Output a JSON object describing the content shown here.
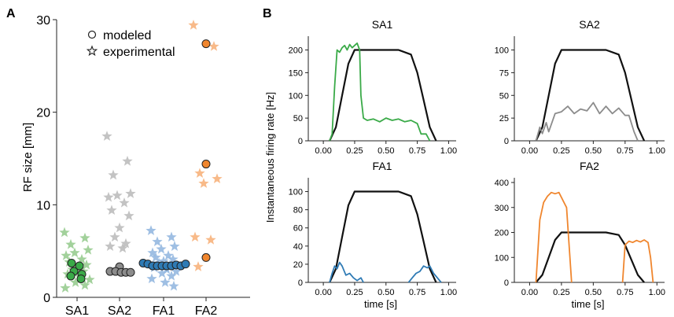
{
  "panel_labels": {
    "a": "A",
    "b": "B"
  },
  "colors": {
    "SA1": "#3aaa48",
    "SA2": "#8c8c8c",
    "FA1": "#2f7bb5",
    "FA2": "#f0862e",
    "SA1_light": "#98cc90",
    "SA2_light": "#bdbdbd",
    "FA1_light": "#95b8e0",
    "FA2_light": "#f7b27c",
    "stimulus": "#111111"
  },
  "chart_data": [
    {
      "type": "scatter",
      "panel": "A",
      "title": "",
      "xlabel": "",
      "ylabel": "RF size [mm]",
      "categories": [
        "SA1",
        "SA2",
        "FA1",
        "FA2"
      ],
      "ylim": [
        0,
        30
      ],
      "yticks": [
        0,
        10,
        20,
        30
      ],
      "legend": {
        "position": "top-center",
        "entries": [
          {
            "marker": "circle",
            "label": "modeled"
          },
          {
            "marker": "star",
            "label": "experimental"
          }
        ]
      },
      "series": [
        {
          "name": "experimental",
          "marker": "star",
          "points": {
            "SA1": [
              7.0,
              6.4,
              5.7,
              5.1,
              4.8,
              4.5,
              4.1,
              3.8,
              3.5,
              3.2,
              3.0,
              2.8,
              2.5,
              2.2,
              1.9,
              1.6,
              1.3,
              1.0
            ],
            "SA2": [
              17.4,
              14.7,
              13.2,
              11.2,
              11.0,
              10.8,
              10.2,
              9.4,
              8.8,
              7.5,
              6.5,
              5.8,
              5.5,
              5.3
            ],
            "FA1": [
              7.2,
              6.5,
              6.0,
              5.5,
              5.2,
              4.8,
              4.5,
              4.3,
              4.1,
              3.9,
              3.7,
              3.5,
              3.2,
              3.0,
              2.8,
              2.6,
              2.3,
              2.0,
              1.6,
              1.2
            ],
            "FA2": [
              29.4,
              27.1,
              13.4,
              12.8,
              12.3,
              6.5,
              6.2,
              3.3
            ]
          }
        },
        {
          "name": "modeled",
          "marker": "circle",
          "points": {
            "SA1": [
              3.7,
              3.4,
              2.8,
              2.5,
              2.3,
              2.0
            ],
            "SA2": [
              3.3,
              2.8,
              2.8,
              2.7,
              2.7,
              2.7
            ],
            "FA1": [
              3.7,
              3.6,
              3.4,
              3.4,
              3.4,
              3.4,
              3.4,
              3.5,
              3.4,
              3.6
            ],
            "FA2": [
              27.4,
              14.4,
              4.3
            ]
          }
        }
      ]
    },
    {
      "type": "line",
      "panel": "B",
      "title": "SA1",
      "xlabel": "",
      "ylabel": "",
      "xlim": [
        0,
        1
      ],
      "ylim": [
        0,
        220
      ],
      "xticks": [
        "0.00",
        "0.25",
        "0.50",
        "0.75",
        "1.00"
      ],
      "yticks": [
        "0",
        "50",
        "100",
        "150",
        "200"
      ],
      "series": [
        {
          "role": "stimulus",
          "color": "#111111",
          "x": [
            0.05,
            0.1,
            0.15,
            0.2,
            0.25,
            0.3,
            0.6,
            0.7,
            0.75,
            0.8,
            0.85,
            0.9
          ],
          "y": [
            0,
            30,
            100,
            170,
            200,
            200,
            200,
            190,
            150,
            90,
            30,
            0
          ]
        },
        {
          "role": "response",
          "color": "#3aaa48",
          "x": [
            0.05,
            0.07,
            0.09,
            0.11,
            0.13,
            0.15,
            0.17,
            0.19,
            0.21,
            0.23,
            0.25,
            0.27,
            0.29,
            0.3,
            0.32,
            0.35,
            0.4,
            0.45,
            0.5,
            0.55,
            0.6,
            0.65,
            0.7,
            0.75,
            0.78,
            0.82,
            0.85
          ],
          "y": [
            0,
            15,
            120,
            200,
            195,
            205,
            210,
            200,
            212,
            205,
            210,
            215,
            200,
            100,
            50,
            45,
            48,
            42,
            50,
            45,
            48,
            42,
            45,
            38,
            15,
            15,
            0
          ]
        }
      ]
    },
    {
      "type": "line",
      "panel": "B",
      "title": "SA2",
      "xlabel": "",
      "ylabel": "",
      "xlim": [
        0,
        1
      ],
      "ylim": [
        0,
        110
      ],
      "xticks": [
        "0.00",
        "0.25",
        "0.50",
        "0.75",
        "1.00"
      ],
      "yticks": [
        "0",
        "25",
        "50",
        "75",
        "100"
      ],
      "series": [
        {
          "role": "stimulus",
          "color": "#111111",
          "x": [
            0.05,
            0.1,
            0.15,
            0.2,
            0.25,
            0.3,
            0.6,
            0.7,
            0.75,
            0.8,
            0.85,
            0.9
          ],
          "y": [
            0,
            15,
            50,
            85,
            100,
            100,
            100,
            95,
            75,
            45,
            15,
            0
          ]
        },
        {
          "role": "response",
          "color": "#8c8c8c",
          "x": [
            0.05,
            0.08,
            0.1,
            0.13,
            0.15,
            0.18,
            0.2,
            0.25,
            0.3,
            0.35,
            0.4,
            0.45,
            0.5,
            0.55,
            0.6,
            0.65,
            0.7,
            0.75,
            0.78,
            0.82,
            0.85
          ],
          "y": [
            0,
            15,
            8,
            20,
            10,
            22,
            30,
            32,
            38,
            30,
            35,
            33,
            42,
            30,
            38,
            30,
            36,
            28,
            28,
            10,
            0
          ]
        }
      ]
    },
    {
      "type": "line",
      "panel": "B",
      "title": "FA1",
      "xlabel": "time [s]",
      "ylabel": "",
      "xlim": [
        0,
        1
      ],
      "ylim": [
        0,
        110
      ],
      "xticks": [
        "0.00",
        "0.25",
        "0.50",
        "0.75",
        "1.00"
      ],
      "yticks": [
        "0",
        "20",
        "40",
        "60",
        "80",
        "100"
      ],
      "series": [
        {
          "role": "stimulus",
          "color": "#111111",
          "x": [
            0.05,
            0.1,
            0.15,
            0.2,
            0.25,
            0.3,
            0.6,
            0.7,
            0.75,
            0.8,
            0.85,
            0.9
          ],
          "y": [
            0,
            15,
            50,
            85,
            100,
            100,
            100,
            95,
            75,
            45,
            15,
            0
          ]
        },
        {
          "role": "response",
          "color": "#2f7bb5",
          "x": [
            0.05,
            0.07,
            0.09,
            0.11,
            0.13,
            0.15,
            0.18,
            0.21,
            0.24,
            0.27,
            0.3,
            0.32
          ],
          "y": [
            0,
            10,
            18,
            15,
            22,
            18,
            8,
            10,
            5,
            2,
            5,
            0
          ]
        },
        {
          "role": "response",
          "color": "#2f7bb5",
          "x": [
            0.68,
            0.71,
            0.74,
            0.77,
            0.8,
            0.83,
            0.85,
            0.88,
            0.91,
            0.94
          ],
          "y": [
            0,
            5,
            10,
            12,
            18,
            16,
            18,
            10,
            5,
            0
          ]
        }
      ]
    },
    {
      "type": "line",
      "panel": "B",
      "title": "FA2",
      "xlabel": "time [s]",
      "ylabel": "",
      "xlim": [
        0,
        1
      ],
      "ylim": [
        0,
        400
      ],
      "xticks": [
        "0.00",
        "0.25",
        "0.50",
        "0.75",
        "1.00"
      ],
      "yticks": [
        "0",
        "100",
        "200",
        "300",
        "400"
      ],
      "series": [
        {
          "role": "stimulus",
          "color": "#111111",
          "x": [
            0.05,
            0.1,
            0.15,
            0.2,
            0.25,
            0.3,
            0.6,
            0.7,
            0.75,
            0.8,
            0.85,
            0.9
          ],
          "y": [
            0,
            30,
            100,
            170,
            200,
            200,
            200,
            190,
            150,
            90,
            30,
            0
          ]
        },
        {
          "role": "response",
          "color": "#f0862e",
          "x": [
            0.05,
            0.08,
            0.11,
            0.14,
            0.17,
            0.2,
            0.23,
            0.26,
            0.29,
            0.31,
            0.33
          ],
          "y": [
            0,
            250,
            320,
            345,
            360,
            355,
            360,
            330,
            300,
            150,
            0
          ]
        },
        {
          "role": "response",
          "color": "#f0862e",
          "x": [
            0.73,
            0.75,
            0.78,
            0.81,
            0.84,
            0.87,
            0.9,
            0.93,
            0.95,
            0.97
          ],
          "y": [
            0,
            150,
            165,
            160,
            168,
            162,
            170,
            160,
            100,
            0
          ]
        }
      ]
    }
  ],
  "shared_ylabel": "Instantaneous firing rate [Hz]"
}
